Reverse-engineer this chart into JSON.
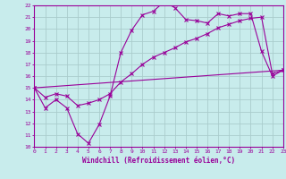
{
  "xlabel": "Windchill (Refroidissement éolien,°C)",
  "bg_color": "#c8ecec",
  "line_color": "#990099",
  "grid_color": "#aacccc",
  "xmin": 0,
  "xmax": 23,
  "ymin": 10,
  "ymax": 22,
  "line1_x": [
    0,
    1,
    2,
    3,
    4,
    5,
    6,
    7,
    8,
    9,
    10,
    11,
    12,
    13,
    14,
    15,
    16,
    17,
    18,
    19,
    20,
    21,
    22,
    23
  ],
  "line1_y": [
    15.0,
    13.3,
    14.0,
    13.3,
    11.1,
    10.3,
    11.9,
    14.3,
    18.0,
    19.9,
    21.2,
    21.5,
    22.3,
    21.8,
    20.8,
    20.7,
    20.5,
    21.3,
    21.1,
    21.3,
    21.3,
    18.1,
    16.0,
    16.5
  ],
  "line2_x": [
    0,
    1,
    2,
    3,
    4,
    5,
    6,
    7,
    8,
    9,
    10,
    11,
    12,
    13,
    14,
    15,
    16,
    17,
    18,
    19,
    20,
    21,
    22,
    23
  ],
  "line2_y": [
    15.0,
    14.2,
    14.5,
    14.3,
    13.5,
    13.7,
    14.0,
    14.5,
    15.5,
    16.2,
    17.0,
    17.6,
    18.0,
    18.4,
    18.9,
    19.2,
    19.6,
    20.1,
    20.4,
    20.7,
    20.9,
    21.0,
    16.2,
    16.5
  ],
  "line3_x": [
    0,
    23
  ],
  "line3_y": [
    15.0,
    16.5
  ]
}
